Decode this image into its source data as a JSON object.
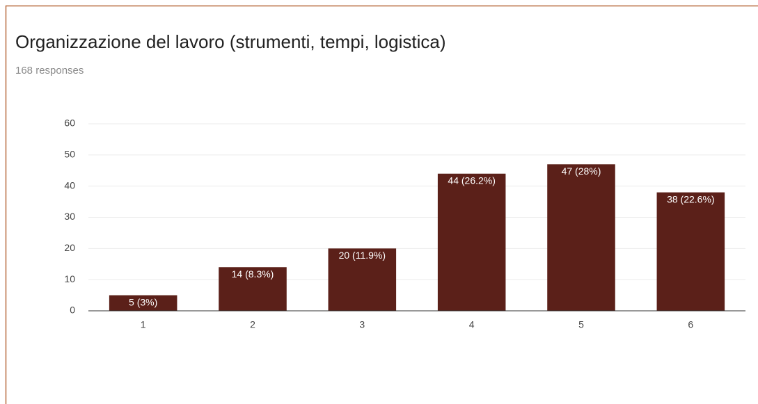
{
  "chart_data": {
    "type": "bar",
    "title": "Organizzazione del lavoro (strumenti, tempi, logistica)",
    "subtitle": "168 responses",
    "categories": [
      "1",
      "2",
      "3",
      "4",
      "5",
      "6"
    ],
    "values": [
      5,
      14,
      20,
      44,
      47,
      38
    ],
    "value_labels": [
      "5 (3%)",
      "14 (8.3%)",
      "20 (11.9%)",
      "44 (26.2%)",
      "47 (28%)",
      "38 (22.6%)"
    ],
    "color": "#5b2019",
    "ylim": [
      0,
      60
    ],
    "yticks": [
      0,
      10,
      20,
      30,
      40,
      50,
      60
    ],
    "grid": true
  }
}
